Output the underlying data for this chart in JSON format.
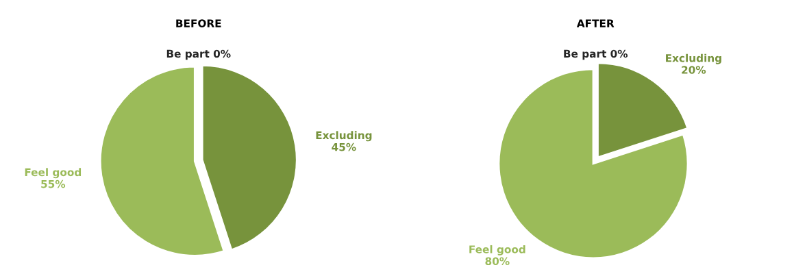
{
  "chart_data": [
    {
      "type": "pie",
      "title": "BEFORE",
      "categories": [
        "Be part",
        "Excluding",
        "Feel good"
      ],
      "values": [
        0,
        45,
        55
      ],
      "value_labels": [
        "0%",
        "45%",
        "55%"
      ],
      "colors": [
        "#262626",
        "#77933c",
        "#9bbb59"
      ]
    },
    {
      "type": "pie",
      "title": "AFTER",
      "categories": [
        "Be part",
        "Excluding",
        "Feel good"
      ],
      "values": [
        0,
        20,
        80
      ],
      "value_labels": [
        "0%",
        "20%",
        "80%"
      ],
      "colors": [
        "#262626",
        "#77933c",
        "#9bbb59"
      ]
    }
  ]
}
